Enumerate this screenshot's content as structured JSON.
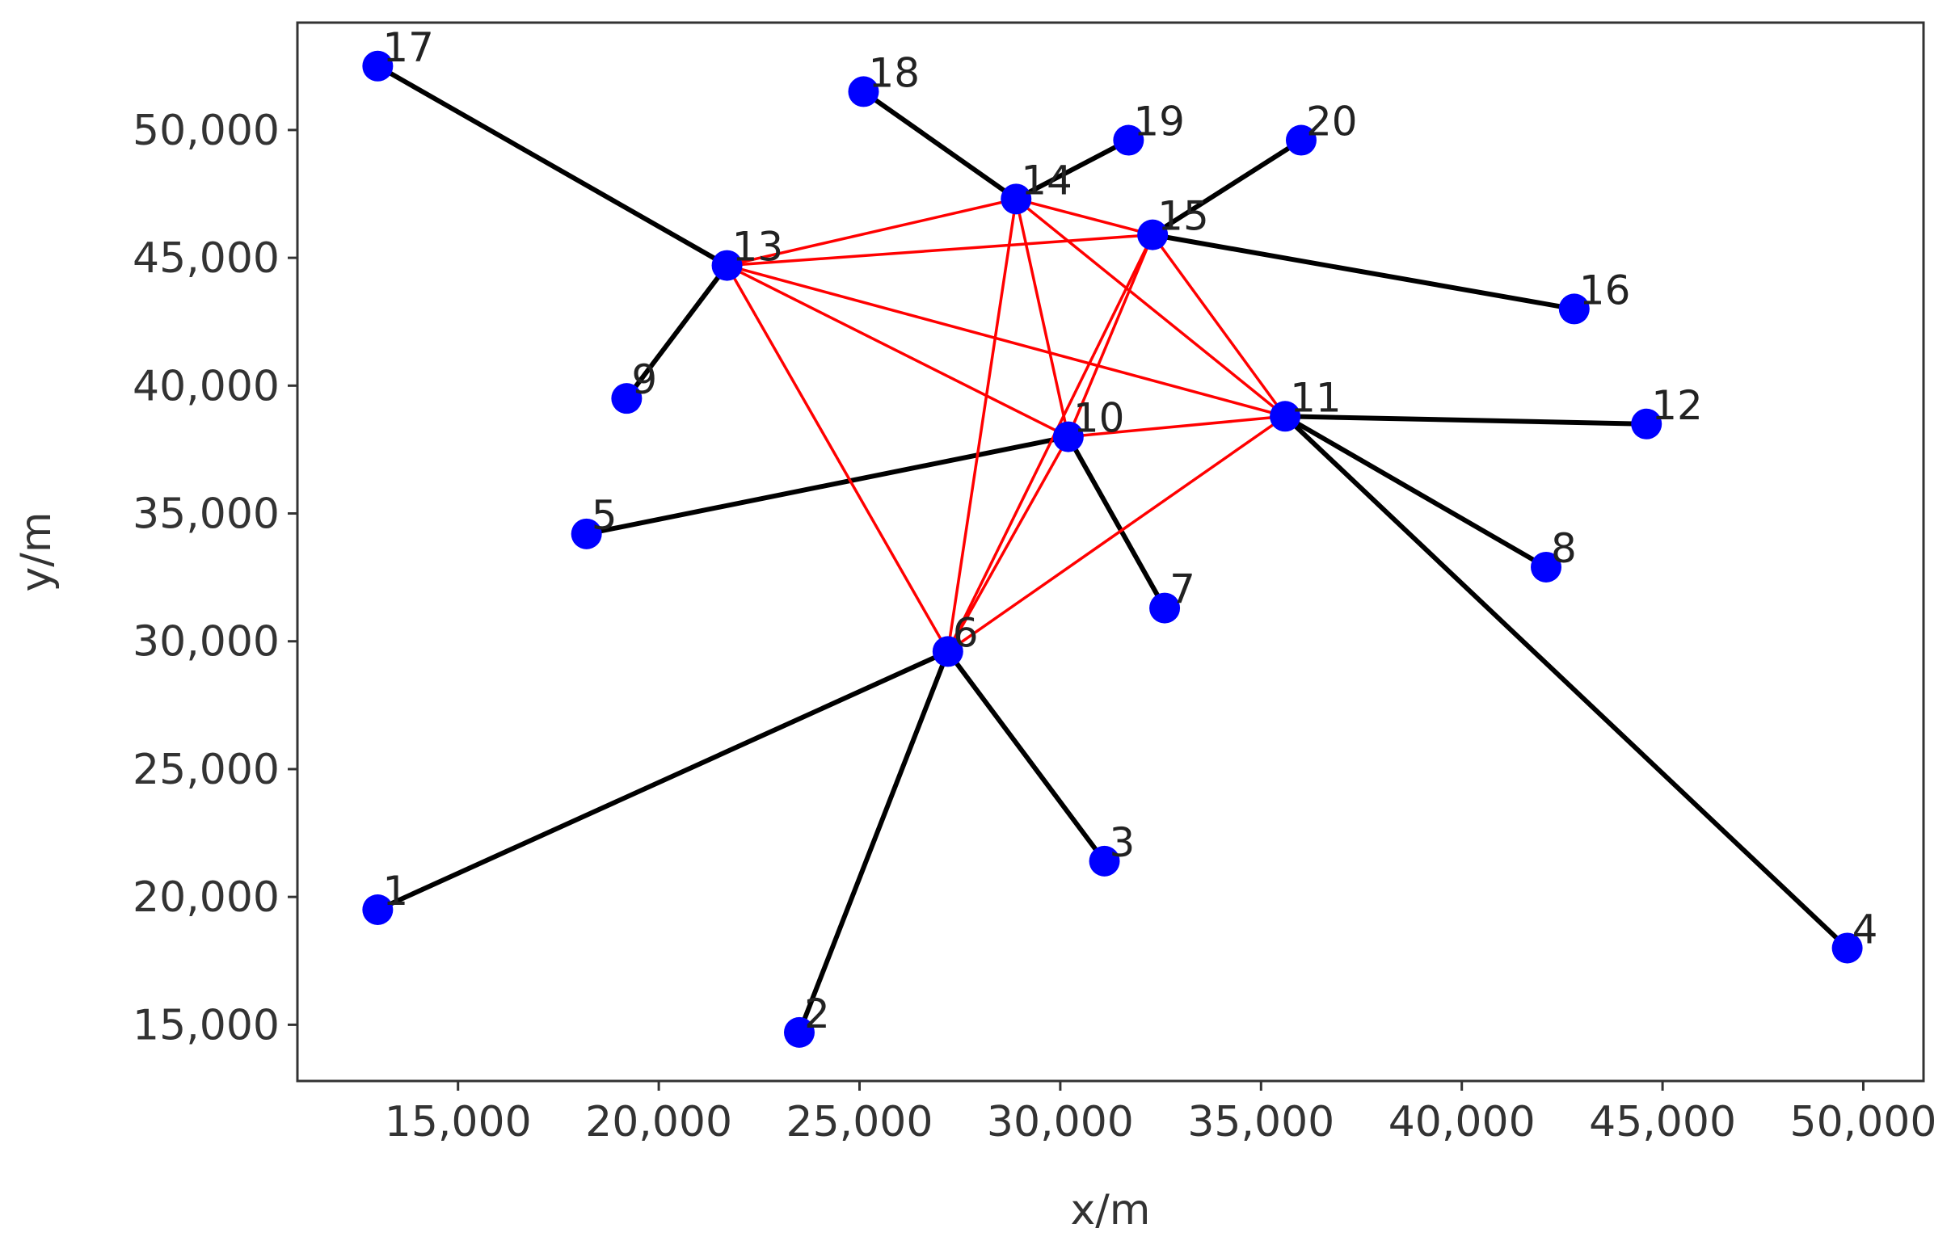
{
  "chart_data": {
    "type": "scatter",
    "title": "",
    "xlabel": "x/m",
    "ylabel": "y/m",
    "xlim": [
      11000,
      51500
    ],
    "ylim": [
      12800,
      54200
    ],
    "grid": false,
    "legend": "none",
    "x_ticks": [
      {
        "value": 15000,
        "label": "15,000"
      },
      {
        "value": 20000,
        "label": "20,000"
      },
      {
        "value": 25000,
        "label": "25,000"
      },
      {
        "value": 30000,
        "label": "30,000"
      },
      {
        "value": 35000,
        "label": "35,000"
      },
      {
        "value": 40000,
        "label": "40,000"
      },
      {
        "value": 45000,
        "label": "45,000"
      },
      {
        "value": 50000,
        "label": "50,000"
      }
    ],
    "y_ticks": [
      {
        "value": 15000,
        "label": "15,000"
      },
      {
        "value": 20000,
        "label": "20,000"
      },
      {
        "value": 25000,
        "label": "25,000"
      },
      {
        "value": 30000,
        "label": "30,000"
      },
      {
        "value": 35000,
        "label": "35,000"
      },
      {
        "value": 40000,
        "label": "40,000"
      },
      {
        "value": 45000,
        "label": "45,000"
      },
      {
        "value": 50000,
        "label": "50,000"
      }
    ],
    "nodes": [
      {
        "id": "1",
        "x": 13000,
        "y": 19500
      },
      {
        "id": "2",
        "x": 23500,
        "y": 14700
      },
      {
        "id": "3",
        "x": 31100,
        "y": 21400
      },
      {
        "id": "4",
        "x": 49600,
        "y": 18000
      },
      {
        "id": "5",
        "x": 18200,
        "y": 34200
      },
      {
        "id": "6",
        "x": 27200,
        "y": 29600
      },
      {
        "id": "7",
        "x": 32600,
        "y": 31300
      },
      {
        "id": "8",
        "x": 42100,
        "y": 32900
      },
      {
        "id": "9",
        "x": 19200,
        "y": 39500
      },
      {
        "id": "10",
        "x": 30200,
        "y": 38000
      },
      {
        "id": "11",
        "x": 35600,
        "y": 38800
      },
      {
        "id": "12",
        "x": 44600,
        "y": 38500
      },
      {
        "id": "13",
        "x": 21700,
        "y": 44700
      },
      {
        "id": "14",
        "x": 28900,
        "y": 47300
      },
      {
        "id": "15",
        "x": 32300,
        "y": 45900
      },
      {
        "id": "16",
        "x": 42800,
        "y": 43000
      },
      {
        "id": "17",
        "x": 13000,
        "y": 52500
      },
      {
        "id": "18",
        "x": 25100,
        "y": 51500
      },
      {
        "id": "19",
        "x": 31700,
        "y": 49600
      },
      {
        "id": "20",
        "x": 36000,
        "y": 49600
      }
    ],
    "edges_black": [
      [
        "17",
        "13"
      ],
      [
        "13",
        "9"
      ],
      [
        "18",
        "14"
      ],
      [
        "14",
        "19"
      ],
      [
        "15",
        "20"
      ],
      [
        "15",
        "16"
      ],
      [
        "11",
        "12"
      ],
      [
        "11",
        "8"
      ],
      [
        "11",
        "4"
      ],
      [
        "10",
        "5"
      ],
      [
        "10",
        "7"
      ],
      [
        "6",
        "1"
      ],
      [
        "6",
        "2"
      ],
      [
        "6",
        "3"
      ]
    ],
    "edges_red": [
      [
        "13",
        "14"
      ],
      [
        "13",
        "15"
      ],
      [
        "13",
        "11"
      ],
      [
        "13",
        "10"
      ],
      [
        "13",
        "6"
      ],
      [
        "14",
        "15"
      ],
      [
        "14",
        "11"
      ],
      [
        "14",
        "10"
      ],
      [
        "14",
        "6"
      ],
      [
        "15",
        "11"
      ],
      [
        "15",
        "10"
      ],
      [
        "15",
        "6"
      ],
      [
        "10",
        "11"
      ],
      [
        "6",
        "11"
      ],
      [
        "6",
        "10"
      ]
    ],
    "colors": {
      "node": "#0000ff",
      "backbone_edge": "#ff0000",
      "access_edge": "#000000",
      "axes": "#333333"
    }
  }
}
